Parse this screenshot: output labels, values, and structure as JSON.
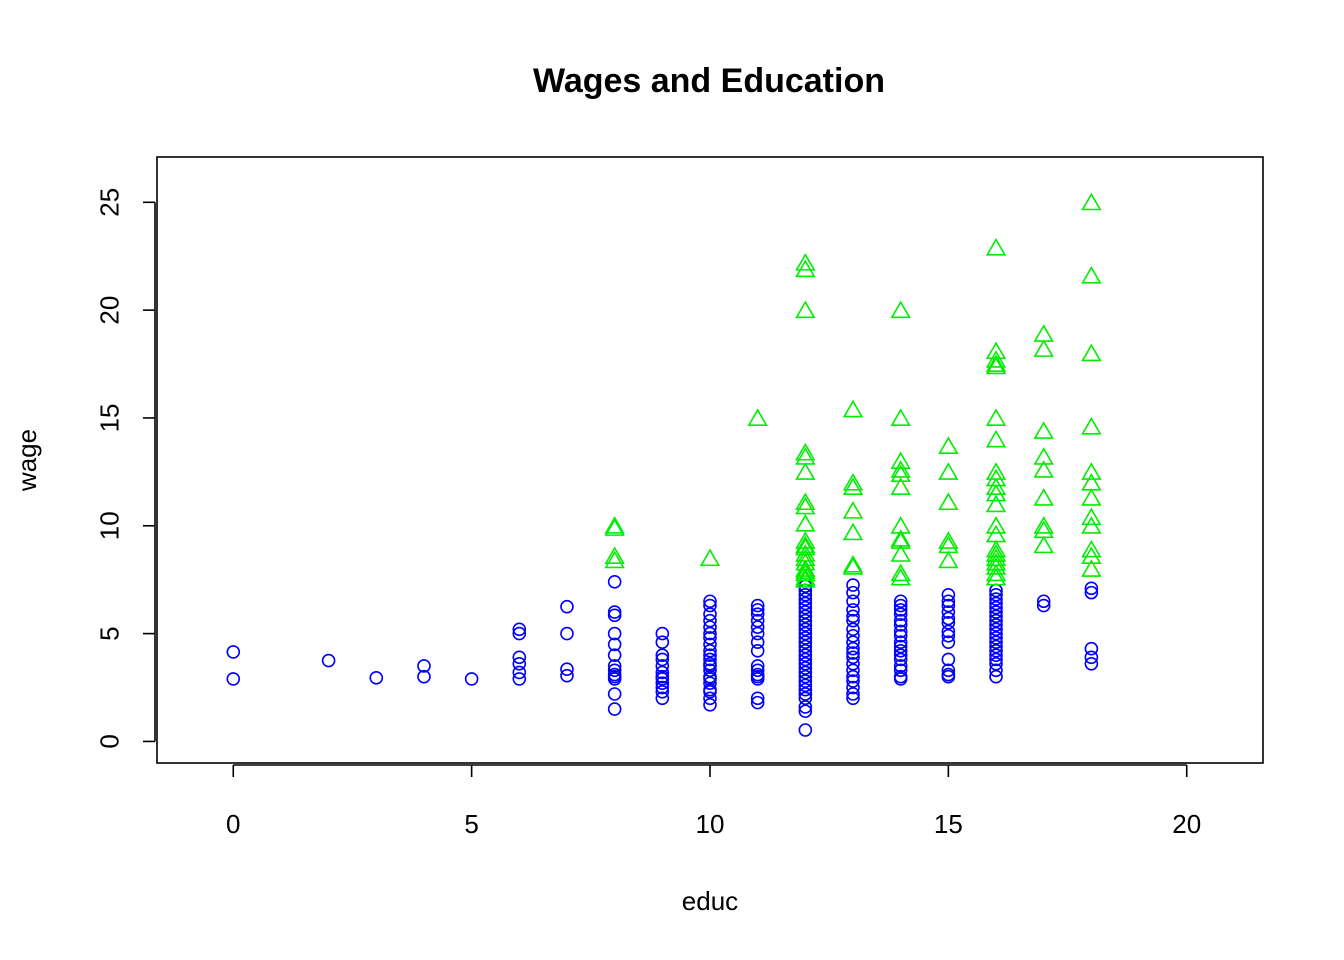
{
  "chart_data": {
    "type": "scatter",
    "title": "Wages and Education",
    "xlabel": "educ",
    "ylabel": "wage",
    "xlim": [
      -1.6,
      21.6
    ],
    "ylim": [
      -1.0,
      27.1
    ],
    "xticks": [
      0,
      5,
      10,
      15,
      20
    ],
    "yticks": [
      0,
      5,
      10,
      15,
      20,
      25
    ],
    "grid": false,
    "colors": {
      "low": "#0000ff",
      "high": "#00ee00",
      "axis": "#000000"
    },
    "markers": {
      "low": "circle",
      "high": "triangle"
    },
    "series": [
      {
        "marker": "circle",
        "color": "#0000ff",
        "points": [
          [
            0,
            4.15
          ],
          [
            0,
            2.9
          ],
          [
            2,
            3.75
          ],
          [
            3,
            2.95
          ],
          [
            4,
            3.5
          ],
          [
            4,
            3.0
          ],
          [
            5,
            2.9
          ],
          [
            6,
            5.2
          ],
          [
            6,
            5.0
          ],
          [
            6,
            3.9
          ],
          [
            6,
            3.6
          ],
          [
            6,
            3.2
          ],
          [
            6,
            2.9
          ],
          [
            7,
            6.25
          ],
          [
            7,
            5.0
          ],
          [
            7,
            3.35
          ],
          [
            7,
            3.05
          ],
          [
            8,
            7.4
          ],
          [
            8,
            6.0
          ],
          [
            8,
            5.85
          ],
          [
            8,
            5.0
          ],
          [
            8,
            4.5
          ],
          [
            8,
            4.0
          ],
          [
            8,
            3.5
          ],
          [
            8,
            3.3
          ],
          [
            8,
            3.1
          ],
          [
            8,
            3.0
          ],
          [
            8,
            2.9
          ],
          [
            8,
            2.2
          ],
          [
            8,
            1.5
          ],
          [
            9,
            5.0
          ],
          [
            9,
            4.6
          ],
          [
            9,
            4.0
          ],
          [
            9,
            3.8
          ],
          [
            9,
            3.5
          ],
          [
            9,
            3.2
          ],
          [
            9,
            3.0
          ],
          [
            9,
            2.9
          ],
          [
            9,
            2.7
          ],
          [
            9,
            2.5
          ],
          [
            9,
            2.3
          ],
          [
            9,
            2.0
          ],
          [
            10,
            6.5
          ],
          [
            10,
            6.3
          ],
          [
            10,
            5.9
          ],
          [
            10,
            5.6
          ],
          [
            10,
            5.3
          ],
          [
            10,
            5.0
          ],
          [
            10,
            4.8
          ],
          [
            10,
            4.5
          ],
          [
            10,
            4.2
          ],
          [
            10,
            4.0
          ],
          [
            10,
            3.8
          ],
          [
            10,
            3.6
          ],
          [
            10,
            3.5
          ],
          [
            10,
            3.3
          ],
          [
            10,
            3.0
          ],
          [
            10,
            2.9
          ],
          [
            10,
            2.7
          ],
          [
            10,
            2.4
          ],
          [
            10,
            2.3
          ],
          [
            10,
            2.0
          ],
          [
            10,
            1.7
          ],
          [
            11,
            6.3
          ],
          [
            11,
            6.1
          ],
          [
            11,
            5.9
          ],
          [
            11,
            5.6
          ],
          [
            11,
            5.3
          ],
          [
            11,
            5.0
          ],
          [
            11,
            4.6
          ],
          [
            11,
            4.2
          ],
          [
            11,
            3.5
          ],
          [
            11,
            3.3
          ],
          [
            11,
            3.1
          ],
          [
            11,
            3.0
          ],
          [
            11,
            2.9
          ],
          [
            11,
            2.0
          ],
          [
            11,
            1.8
          ],
          [
            12,
            7.2
          ],
          [
            12,
            7.0
          ],
          [
            12,
            6.8
          ],
          [
            12,
            6.6
          ],
          [
            12,
            6.4
          ],
          [
            12,
            6.2
          ],
          [
            12,
            6.0
          ],
          [
            12,
            5.8
          ],
          [
            12,
            5.6
          ],
          [
            12,
            5.4
          ],
          [
            12,
            5.2
          ],
          [
            12,
            5.0
          ],
          [
            12,
            4.8
          ],
          [
            12,
            4.6
          ],
          [
            12,
            4.4
          ],
          [
            12,
            4.2
          ],
          [
            12,
            4.0
          ],
          [
            12,
            3.8
          ],
          [
            12,
            3.6
          ],
          [
            12,
            3.4
          ],
          [
            12,
            3.2
          ],
          [
            12,
            3.0
          ],
          [
            12,
            2.8
          ],
          [
            12,
            2.6
          ],
          [
            12,
            2.4
          ],
          [
            12,
            2.2
          ],
          [
            12,
            2.0
          ],
          [
            12,
            1.6
          ],
          [
            12,
            1.4
          ],
          [
            12,
            0.53
          ],
          [
            13,
            7.25
          ],
          [
            13,
            6.9
          ],
          [
            13,
            6.5
          ],
          [
            13,
            6.1
          ],
          [
            13,
            5.8
          ],
          [
            13,
            5.6
          ],
          [
            13,
            5.2
          ],
          [
            13,
            4.9
          ],
          [
            13,
            4.6
          ],
          [
            13,
            4.3
          ],
          [
            13,
            4.1
          ],
          [
            13,
            3.9
          ],
          [
            13,
            3.6
          ],
          [
            13,
            3.3
          ],
          [
            13,
            3.0
          ],
          [
            13,
            2.8
          ],
          [
            13,
            2.5
          ],
          [
            13,
            2.2
          ],
          [
            13,
            2.0
          ],
          [
            14,
            6.5
          ],
          [
            14,
            6.3
          ],
          [
            14,
            6.1
          ],
          [
            14,
            5.9
          ],
          [
            14,
            5.6
          ],
          [
            14,
            5.4
          ],
          [
            14,
            5.1
          ],
          [
            14,
            4.9
          ],
          [
            14,
            4.6
          ],
          [
            14,
            4.4
          ],
          [
            14,
            4.2
          ],
          [
            14,
            4.0
          ],
          [
            14,
            3.8
          ],
          [
            14,
            3.5
          ],
          [
            14,
            3.3
          ],
          [
            14,
            3.0
          ],
          [
            14,
            2.9
          ],
          [
            15,
            6.8
          ],
          [
            15,
            6.5
          ],
          [
            15,
            6.3
          ],
          [
            15,
            6.0
          ],
          [
            15,
            5.7
          ],
          [
            15,
            5.5
          ],
          [
            15,
            5.1
          ],
          [
            15,
            4.9
          ],
          [
            15,
            4.6
          ],
          [
            15,
            3.8
          ],
          [
            15,
            3.3
          ],
          [
            15,
            3.1
          ],
          [
            15,
            3.0
          ],
          [
            16,
            7.0
          ],
          [
            16,
            6.8
          ],
          [
            16,
            6.6
          ],
          [
            16,
            6.4
          ],
          [
            16,
            6.2
          ],
          [
            16,
            6.0
          ],
          [
            16,
            5.8
          ],
          [
            16,
            5.6
          ],
          [
            16,
            5.4
          ],
          [
            16,
            5.2
          ],
          [
            16,
            5.0
          ],
          [
            16,
            4.8
          ],
          [
            16,
            4.6
          ],
          [
            16,
            4.4
          ],
          [
            16,
            4.2
          ],
          [
            16,
            4.0
          ],
          [
            16,
            3.8
          ],
          [
            16,
            3.6
          ],
          [
            16,
            3.3
          ],
          [
            16,
            3.0
          ],
          [
            17,
            6.5
          ],
          [
            17,
            6.3
          ],
          [
            18,
            7.1
          ],
          [
            18,
            6.9
          ],
          [
            18,
            4.3
          ],
          [
            18,
            3.9
          ],
          [
            18,
            3.6
          ]
        ]
      },
      {
        "marker": "triangle",
        "color": "#00ee00",
        "points": [
          [
            8,
            10.0
          ],
          [
            8,
            9.9
          ],
          [
            8,
            8.6
          ],
          [
            8,
            8.4
          ],
          [
            10,
            8.5
          ],
          [
            11,
            15.0
          ],
          [
            12,
            22.2
          ],
          [
            12,
            21.9
          ],
          [
            12,
            20.0
          ],
          [
            12,
            13.4
          ],
          [
            12,
            13.2
          ],
          [
            12,
            12.5
          ],
          [
            12,
            11.1
          ],
          [
            12,
            10.9
          ],
          [
            12,
            10.1
          ],
          [
            12,
            9.3
          ],
          [
            12,
            9.1
          ],
          [
            12,
            9.0
          ],
          [
            12,
            8.7
          ],
          [
            12,
            8.5
          ],
          [
            12,
            8.3
          ],
          [
            12,
            8.0
          ],
          [
            12,
            7.9
          ],
          [
            12,
            7.8
          ],
          [
            12,
            7.6
          ],
          [
            12,
            7.5
          ],
          [
            13,
            15.4
          ],
          [
            13,
            12.0
          ],
          [
            13,
            11.8
          ],
          [
            13,
            10.7
          ],
          [
            13,
            9.7
          ],
          [
            13,
            8.2
          ],
          [
            13,
            8.1
          ],
          [
            14,
            20.0
          ],
          [
            14,
            15.0
          ],
          [
            14,
            13.0
          ],
          [
            14,
            12.6
          ],
          [
            14,
            12.4
          ],
          [
            14,
            11.8
          ],
          [
            14,
            10.0
          ],
          [
            14,
            9.4
          ],
          [
            14,
            9.3
          ],
          [
            14,
            8.7
          ],
          [
            14,
            7.8
          ],
          [
            14,
            7.6
          ],
          [
            15,
            13.7
          ],
          [
            15,
            12.5
          ],
          [
            15,
            11.1
          ],
          [
            15,
            9.3
          ],
          [
            15,
            9.1
          ],
          [
            15,
            8.4
          ],
          [
            16,
            22.9
          ],
          [
            16,
            18.1
          ],
          [
            16,
            17.7
          ],
          [
            16,
            17.5
          ],
          [
            16,
            17.4
          ],
          [
            16,
            15.0
          ],
          [
            16,
            14.0
          ],
          [
            16,
            12.5
          ],
          [
            16,
            12.2
          ],
          [
            16,
            11.8
          ],
          [
            16,
            11.5
          ],
          [
            16,
            11.0
          ],
          [
            16,
            10.0
          ],
          [
            16,
            9.6
          ],
          [
            16,
            8.9
          ],
          [
            16,
            8.7
          ],
          [
            16,
            8.5
          ],
          [
            16,
            8.3
          ],
          [
            16,
            8.1
          ],
          [
            16,
            7.8
          ],
          [
            16,
            7.6
          ],
          [
            17,
            18.9
          ],
          [
            17,
            18.2
          ],
          [
            17,
            14.4
          ],
          [
            17,
            13.2
          ],
          [
            17,
            12.6
          ],
          [
            17,
            11.3
          ],
          [
            17,
            10.0
          ],
          [
            17,
            9.8
          ],
          [
            17,
            9.1
          ],
          [
            18,
            25.0
          ],
          [
            18,
            21.6
          ],
          [
            18,
            18.0
          ],
          [
            18,
            14.6
          ],
          [
            18,
            12.5
          ],
          [
            18,
            12.0
          ],
          [
            18,
            11.3
          ],
          [
            18,
            10.4
          ],
          [
            18,
            10.0
          ],
          [
            18,
            8.9
          ],
          [
            18,
            8.6
          ],
          [
            18,
            8.0
          ]
        ]
      }
    ]
  }
}
